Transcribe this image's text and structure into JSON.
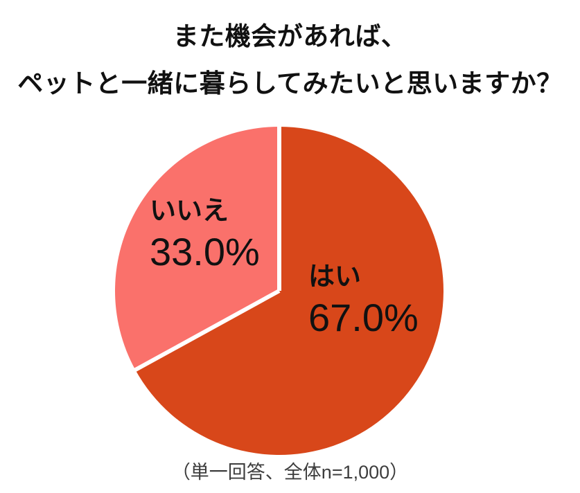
{
  "title": {
    "line1": "また機会があれば、",
    "line2": "ペットと一緒に暮らしてみたいと思いますか？"
  },
  "caption": "（単一回答、全体n=1,000）",
  "colors": {
    "yes_slice": "#D8471A",
    "no_slice": "#FA716B",
    "divider": "#FFFFFF",
    "title_text": "#111111",
    "caption_text": "#3D3D3D"
  },
  "chart_data": {
    "type": "pie",
    "title": "また機会があれば、ペットと一緒に暮らしてみたいと思いますか？",
    "note": "（単一回答、全体n=1,000）",
    "sample_size": "n=1,000",
    "start_angle_deg": 0,
    "direction": "clockwise",
    "legend_position": "inside",
    "slices": [
      {
        "label": "はい",
        "value": 67.0,
        "display": "67.0%",
        "color": "#D8471A"
      },
      {
        "label": "いいえ",
        "value": 33.0,
        "display": "33.0%",
        "color": "#FA716B"
      }
    ]
  }
}
